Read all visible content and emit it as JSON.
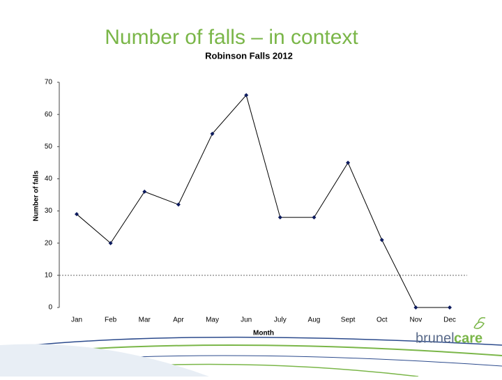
{
  "slide_title": "Number of falls – in context",
  "chart_data": {
    "type": "line",
    "title": "Robinson Falls 2012",
    "x_label": "Month",
    "y_label": "Number of falls",
    "categories": [
      "Jan",
      "Feb",
      "Mar",
      "Apr",
      "May",
      "Jun",
      "July",
      "Aug",
      "Sept",
      "Oct",
      "Nov",
      "Dec"
    ],
    "values": [
      29,
      20,
      36,
      32,
      54,
      66,
      28,
      28,
      45,
      21,
      0,
      0
    ],
    "color": "#0d1b5e",
    "reference_line": 10,
    "ylim": [
      0,
      70
    ],
    "yticks": [
      0,
      10,
      20,
      30,
      40,
      50,
      60,
      70
    ]
  },
  "logo": {
    "part1": "brunel",
    "part2": "care"
  }
}
